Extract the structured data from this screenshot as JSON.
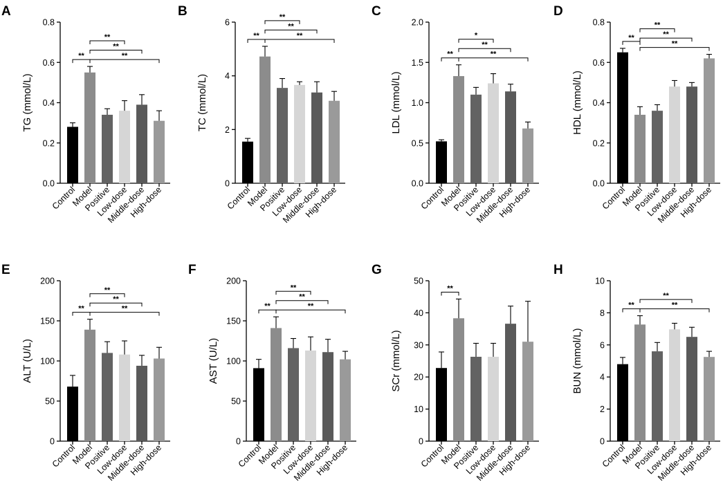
{
  "figure": {
    "categories": [
      "Control",
      "Model",
      "Positive",
      "Low-dose",
      "Middle-dose",
      "High-dose"
    ],
    "bar_colors": [
      "#000000",
      "#8c8c8c",
      "#636363",
      "#d6d6d6",
      "#5a5a5a",
      "#9a9a9a"
    ]
  },
  "chart_data": [
    {
      "panel": "A",
      "type": "bar",
      "ylabel": "TG (mmol/L)",
      "ylim": [
        0,
        0.8
      ],
      "yticks": [
        0.0,
        0.2,
        0.4,
        0.6,
        0.8
      ],
      "ytick_labels": [
        "0.0",
        "0.2",
        "0.4",
        "0.6",
        "0.8"
      ],
      "categories": [
        "Control",
        "Model",
        "Positive",
        "Low-dose",
        "Middle-dose",
        "High-dose"
      ],
      "values": [
        0.28,
        0.55,
        0.34,
        0.36,
        0.39,
        0.31
      ],
      "errors": [
        0.02,
        0.03,
        0.03,
        0.05,
        0.05,
        0.05
      ],
      "significance": [
        {
          "from": 0,
          "to": 1,
          "label": "**"
        },
        {
          "from": 1,
          "to": 3,
          "label": "**"
        },
        {
          "from": 1,
          "to": 4,
          "label": "**"
        },
        {
          "from": 1,
          "to": 5,
          "label": "**"
        }
      ]
    },
    {
      "panel": "B",
      "type": "bar",
      "ylabel": "TC (mmol/L)",
      "ylim": [
        0,
        6
      ],
      "yticks": [
        0,
        2,
        4,
        6
      ],
      "ytick_labels": [
        "0",
        "2",
        "4",
        "6"
      ],
      "categories": [
        "Control",
        "Model",
        "Positive",
        "Low-dose",
        "Middle-dose",
        "High-dose"
      ],
      "values": [
        1.55,
        4.72,
        3.55,
        3.66,
        3.38,
        3.07
      ],
      "errors": [
        0.12,
        0.38,
        0.35,
        0.12,
        0.4,
        0.35
      ],
      "significance": [
        {
          "from": 0,
          "to": 1,
          "label": "**"
        },
        {
          "from": 1,
          "to": 3,
          "label": "**"
        },
        {
          "from": 1,
          "to": 4,
          "label": "**"
        },
        {
          "from": 1,
          "to": 5,
          "label": "**"
        }
      ]
    },
    {
      "panel": "C",
      "type": "bar",
      "ylabel": "LDL (mmol/L)",
      "ylim": [
        0,
        2.0
      ],
      "yticks": [
        0.0,
        0.5,
        1.0,
        1.5,
        2.0
      ],
      "ytick_labels": [
        "0.0",
        "0.5",
        "1.0",
        "1.5",
        "2.0"
      ],
      "categories": [
        "Control",
        "Model",
        "Positive",
        "Low-dose",
        "Middle-dose",
        "High-dose"
      ],
      "values": [
        0.52,
        1.33,
        1.1,
        1.24,
        1.14,
        0.68
      ],
      "errors": [
        0.02,
        0.14,
        0.09,
        0.12,
        0.09,
        0.08
      ],
      "significance": [
        {
          "from": 0,
          "to": 1,
          "label": "**"
        },
        {
          "from": 1,
          "to": 3,
          "label": "*"
        },
        {
          "from": 1,
          "to": 4,
          "label": "**"
        },
        {
          "from": 1,
          "to": 5,
          "label": "**"
        }
      ]
    },
    {
      "panel": "D",
      "type": "bar",
      "ylabel": "HDL (mmol/L)",
      "ylim": [
        0,
        0.8
      ],
      "yticks": [
        0.0,
        0.2,
        0.4,
        0.6,
        0.8
      ],
      "ytick_labels": [
        "0.0",
        "0.2",
        "0.4",
        "0.6",
        "0.8"
      ],
      "categories": [
        "Control",
        "Model",
        "Positive",
        "Low-dose",
        "Middle-dose",
        "High-dose"
      ],
      "values": [
        0.65,
        0.34,
        0.36,
        0.48,
        0.48,
        0.62
      ],
      "errors": [
        0.02,
        0.04,
        0.03,
        0.03,
        0.02,
        0.02
      ],
      "significance": [
        {
          "from": 0,
          "to": 1,
          "label": "**"
        },
        {
          "from": 1,
          "to": 3,
          "label": "**"
        },
        {
          "from": 1,
          "to": 4,
          "label": "**"
        },
        {
          "from": 1,
          "to": 5,
          "label": "**"
        }
      ]
    },
    {
      "panel": "E",
      "type": "bar",
      "ylabel": "ALT (U/L)",
      "ylim": [
        0,
        200
      ],
      "yticks": [
        0,
        50,
        100,
        150,
        200
      ],
      "ytick_labels": [
        "0",
        "50",
        "100",
        "150",
        "200"
      ],
      "categories": [
        "Control",
        "Model",
        "Positive",
        "Low-dose",
        "Middle-dose",
        "High-dose"
      ],
      "values": [
        68,
        139,
        110,
        108,
        94,
        103
      ],
      "errors": [
        14,
        13,
        14,
        17,
        13,
        14
      ],
      "significance": [
        {
          "from": 0,
          "to": 1,
          "label": "**"
        },
        {
          "from": 1,
          "to": 3,
          "label": "**"
        },
        {
          "from": 1,
          "to": 4,
          "label": "**"
        },
        {
          "from": 1,
          "to": 5,
          "label": "**"
        }
      ]
    },
    {
      "panel": "F",
      "type": "bar",
      "ylabel": "AST (U/L)",
      "ylim": [
        0,
        200
      ],
      "yticks": [
        0,
        50,
        100,
        150,
        200
      ],
      "ytick_labels": [
        "0",
        "50",
        "100",
        "150",
        "200"
      ],
      "categories": [
        "Control",
        "Model",
        "Positive",
        "Low-dose",
        "Middle-dose",
        "High-dose"
      ],
      "values": [
        91,
        141,
        116,
        113,
        111,
        102
      ],
      "errors": [
        11,
        14,
        12,
        17,
        16,
        10
      ],
      "significance": [
        {
          "from": 0,
          "to": 1,
          "label": "**"
        },
        {
          "from": 1,
          "to": 3,
          "label": "**"
        },
        {
          "from": 1,
          "to": 4,
          "label": "**"
        },
        {
          "from": 1,
          "to": 5,
          "label": "**"
        }
      ]
    },
    {
      "panel": "G",
      "type": "bar",
      "ylabel": "SCr (mmol/L)",
      "ylim": [
        0,
        50
      ],
      "yticks": [
        0,
        10,
        20,
        30,
        40,
        50
      ],
      "ytick_labels": [
        "0",
        "10",
        "20",
        "30",
        "40",
        "50"
      ],
      "categories": [
        "Control",
        "Model",
        "Positive",
        "Low-dose",
        "Middle-dose",
        "High-dose"
      ],
      "values": [
        22.8,
        38.3,
        26.3,
        26.3,
        36.6,
        31.0
      ],
      "errors": [
        5,
        6,
        4.2,
        4.2,
        5.5,
        12.6
      ],
      "significance": [
        {
          "from": 0,
          "to": 1,
          "label": "**"
        }
      ]
    },
    {
      "panel": "H",
      "type": "bar",
      "ylabel": "BUN (mmol/L)",
      "ylim": [
        0,
        10
      ],
      "yticks": [
        0,
        2,
        4,
        6,
        8,
        10
      ],
      "ytick_labels": [
        "0",
        "2",
        "4",
        "6",
        "8",
        "10"
      ],
      "categories": [
        "Control",
        "Model",
        "Positive",
        "Low-dose",
        "Middle-dose",
        "High-dose"
      ],
      "values": [
        4.8,
        7.27,
        5.6,
        6.97,
        6.5,
        5.25
      ],
      "errors": [
        0.42,
        0.55,
        0.55,
        0.38,
        0.6,
        0.35
      ],
      "significance": [
        {
          "from": 0,
          "to": 1,
          "label": "**"
        },
        {
          "from": 1,
          "to": 4,
          "label": "**"
        },
        {
          "from": 1,
          "to": 5,
          "label": "**"
        }
      ]
    }
  ]
}
